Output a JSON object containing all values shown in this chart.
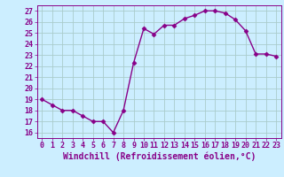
{
  "x": [
    0,
    1,
    2,
    3,
    4,
    5,
    6,
    7,
    8,
    9,
    10,
    11,
    12,
    13,
    14,
    15,
    16,
    17,
    18,
    19,
    20,
    21,
    22,
    23
  ],
  "y": [
    19.0,
    18.5,
    18.0,
    18.0,
    17.5,
    17.0,
    17.0,
    16.0,
    18.0,
    22.3,
    25.4,
    24.9,
    25.7,
    25.7,
    26.3,
    26.6,
    27.0,
    27.0,
    26.8,
    26.2,
    25.2,
    23.1,
    23.1,
    22.9
  ],
  "line_color": "#880088",
  "marker": "D",
  "marker_size": 2.5,
  "background_color": "#cceeff",
  "grid_color": "#aacccc",
  "xlabel": "Windchill (Refroidissement éolien,°C)",
  "xlabel_fontsize": 7,
  "xlim": [
    -0.5,
    23.5
  ],
  "ylim": [
    15.5,
    27.5
  ],
  "yticks": [
    16,
    17,
    18,
    19,
    20,
    21,
    22,
    23,
    24,
    25,
    26,
    27
  ],
  "xticks": [
    0,
    1,
    2,
    3,
    4,
    5,
    6,
    7,
    8,
    9,
    10,
    11,
    12,
    13,
    14,
    15,
    16,
    17,
    18,
    19,
    20,
    21,
    22,
    23
  ],
  "tick_fontsize": 6,
  "line_width": 1.0
}
